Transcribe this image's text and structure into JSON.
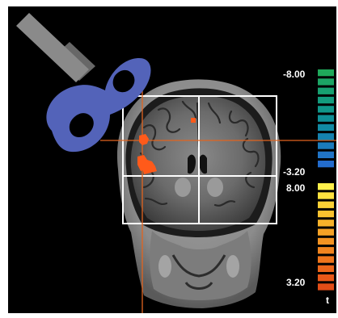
{
  "colorbar": {
    "negative": {
      "max_label": "-8.00",
      "min_label": "-3.20",
      "colors": [
        "#1fa85a",
        "#1ca565",
        "#17a070",
        "#139b7d",
        "#109689",
        "#0f8f96",
        "#118aa3",
        "#1582af",
        "#1b7bbb",
        "#2174c6",
        "#236ccd"
      ]
    },
    "positive": {
      "max_label": "8.00",
      "min_label": "3.20",
      "colors": [
        "#fff04a",
        "#fde23f",
        "#fbd236",
        "#f9c22f",
        "#f7b22a",
        "#f5a226",
        "#f39322",
        "#f1841f",
        "#ef751c",
        "#ec661a",
        "#e85818",
        "#e24d17"
      ]
    },
    "unit_label": "t"
  },
  "overlay": {
    "crosshair_color": "#e2641f",
    "grid_color": "#ffffff",
    "activation_color": "#ff5a1a"
  },
  "coil": {
    "body_color": "#5363b9",
    "handle_color": "#8a8a8a"
  }
}
